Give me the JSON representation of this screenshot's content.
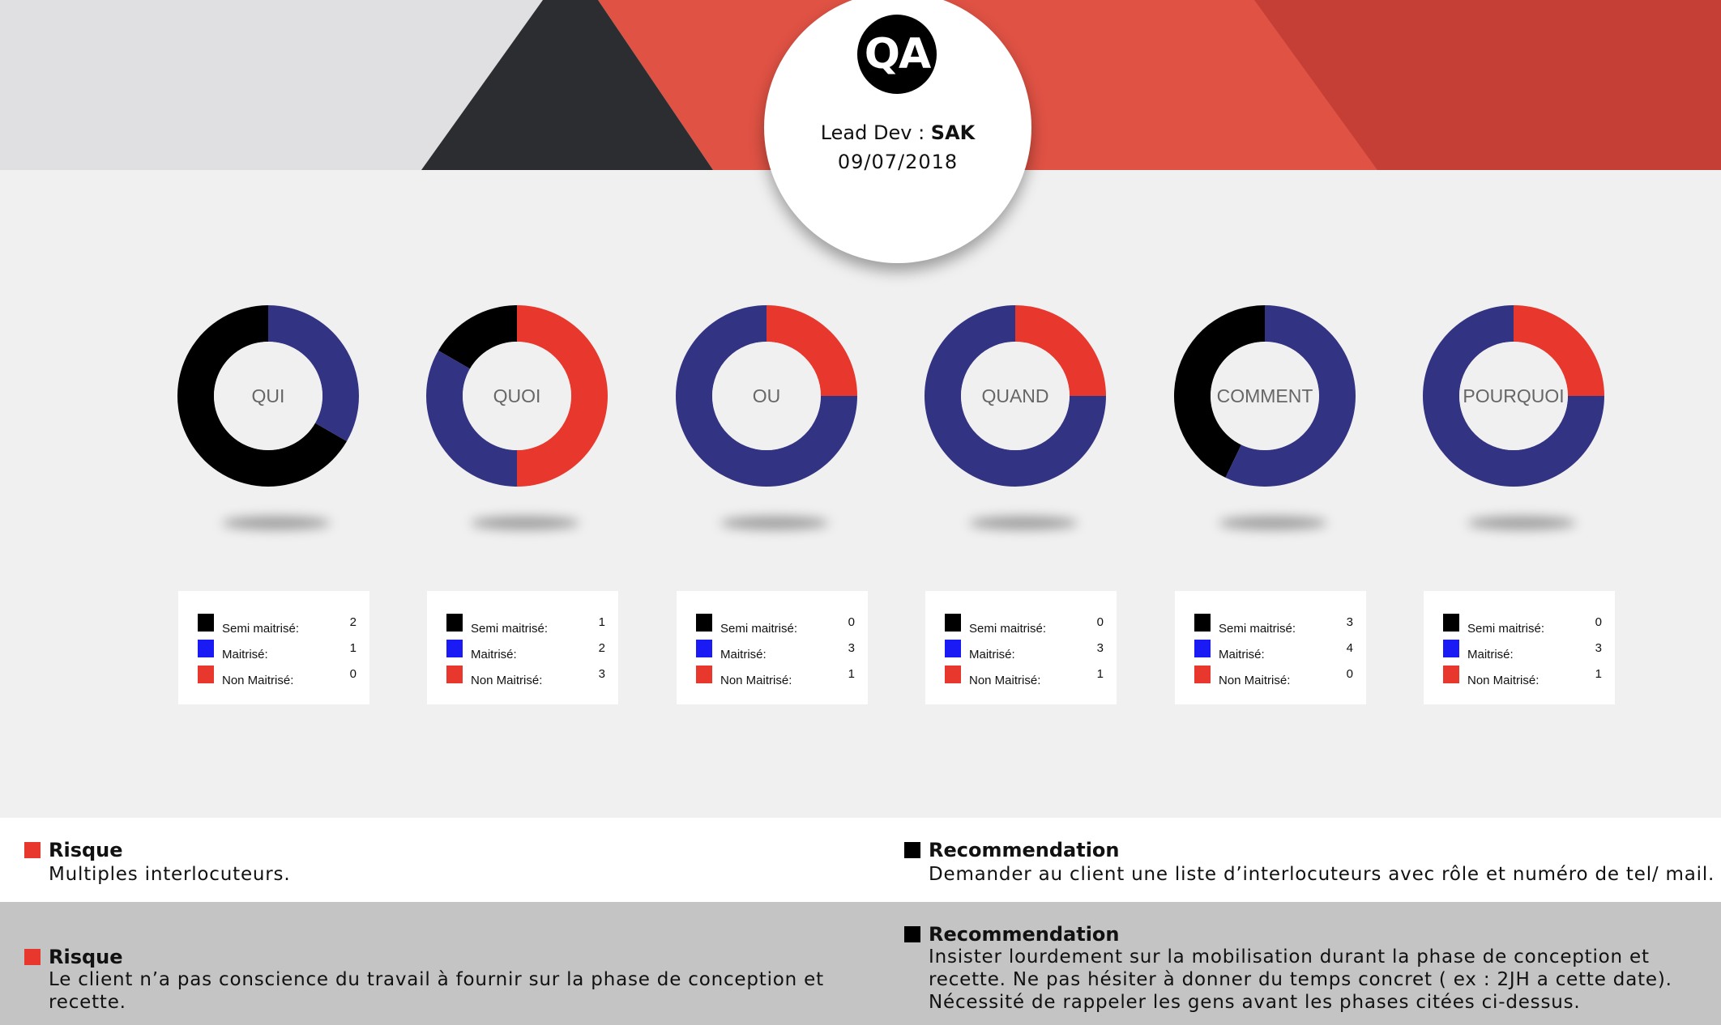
{
  "header": {
    "logo_text": "QA",
    "lead_label": "Lead Dev : ",
    "lead_name": "SAK",
    "date": "09/07/2018",
    "colors": {
      "grey_band": "#e0e0e2",
      "dark_triangle": "#2b2d30",
      "red_main": "#df5244",
      "red_dark": "#c53f36"
    }
  },
  "legend_labels": {
    "semi": "Semi maitrisé:",
    "maitrise": "Maitrisé:",
    "non": "Non Maitrisé:"
  },
  "colors": {
    "semi_legend": "#000000",
    "maitrise_legend": "#1a1af5",
    "non_legend": "#e8372c",
    "semi_donut": "#000000",
    "maitrise_donut": "#333383",
    "non_donut": "#e8372c",
    "risk_square": "#e8372c",
    "recommendation_square": "#000000"
  },
  "chart_data": {
    "type": "donut",
    "series_keys": [
      "semi",
      "maitrise",
      "non"
    ],
    "charts": [
      {
        "label": "QUI",
        "semi": 2,
        "maitrise": 1,
        "non": 0
      },
      {
        "label": "QUOI",
        "semi": 1,
        "maitrise": 2,
        "non": 3
      },
      {
        "label": "OU",
        "semi": 0,
        "maitrise": 3,
        "non": 1
      },
      {
        "label": "QUAND",
        "semi": 0,
        "maitrise": 3,
        "non": 1
      },
      {
        "label": "COMMENT",
        "semi": 3,
        "maitrise": 4,
        "non": 0
      },
      {
        "label": "POURQUOI",
        "semi": 0,
        "maitrise": 3,
        "non": 1
      }
    ]
  },
  "notes": {
    "risk_1": {
      "title": "Risque",
      "lines": [
        "Multiples interlocuteurs."
      ]
    },
    "reco_1": {
      "title": "Recommendation",
      "lines": [
        "Demander au client une liste d’interlocuteurs avec rôle et numéro de tel/ mail."
      ]
    },
    "risk_2": {
      "title": "Risque",
      "lines": [
        "Le client n’a pas conscience du travail à fournir sur la phase de conception et",
        "recette."
      ]
    },
    "reco_2": {
      "title": "Recommendation",
      "lines": [
        "Insister lourdement sur la mobilisation durant la phase de conception et",
        "recette. Ne pas hésiter à donner du temps concret ( ex : 2JH a cette date).",
        "Nécessité de rappeler les gens avant les phases citées ci-dessus."
      ]
    }
  }
}
